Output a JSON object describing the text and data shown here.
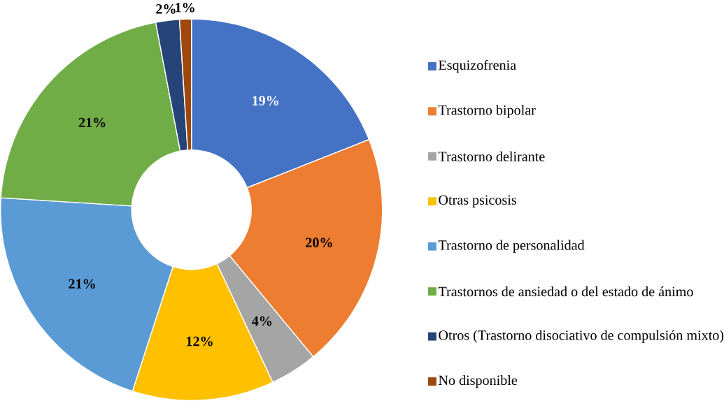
{
  "chart_data": {
    "type": "donut",
    "categories": [
      "Esquizofrenia",
      "Trastorno bipolar",
      "Trastorno delirante",
      "Otras psicosis",
      "Trastorno de personalidad",
      "Trastornos de ansiedad o del estado de ánimo",
      "Otros (Trastorno disociativo de compulsión mixto)",
      "No disponible"
    ],
    "values": [
      19,
      20,
      4,
      12,
      21,
      21,
      2,
      1
    ],
    "colors": [
      "#4472c4",
      "#ed7d31",
      "#a5a5a5",
      "#ffc000",
      "#5b9bd5",
      "#70ad47",
      "#264478",
      "#9e480e"
    ],
    "value_labels": [
      "19%",
      "20%",
      "4%",
      "12%",
      "21%",
      "21%",
      "2%",
      "1%"
    ],
    "legend": "right"
  }
}
